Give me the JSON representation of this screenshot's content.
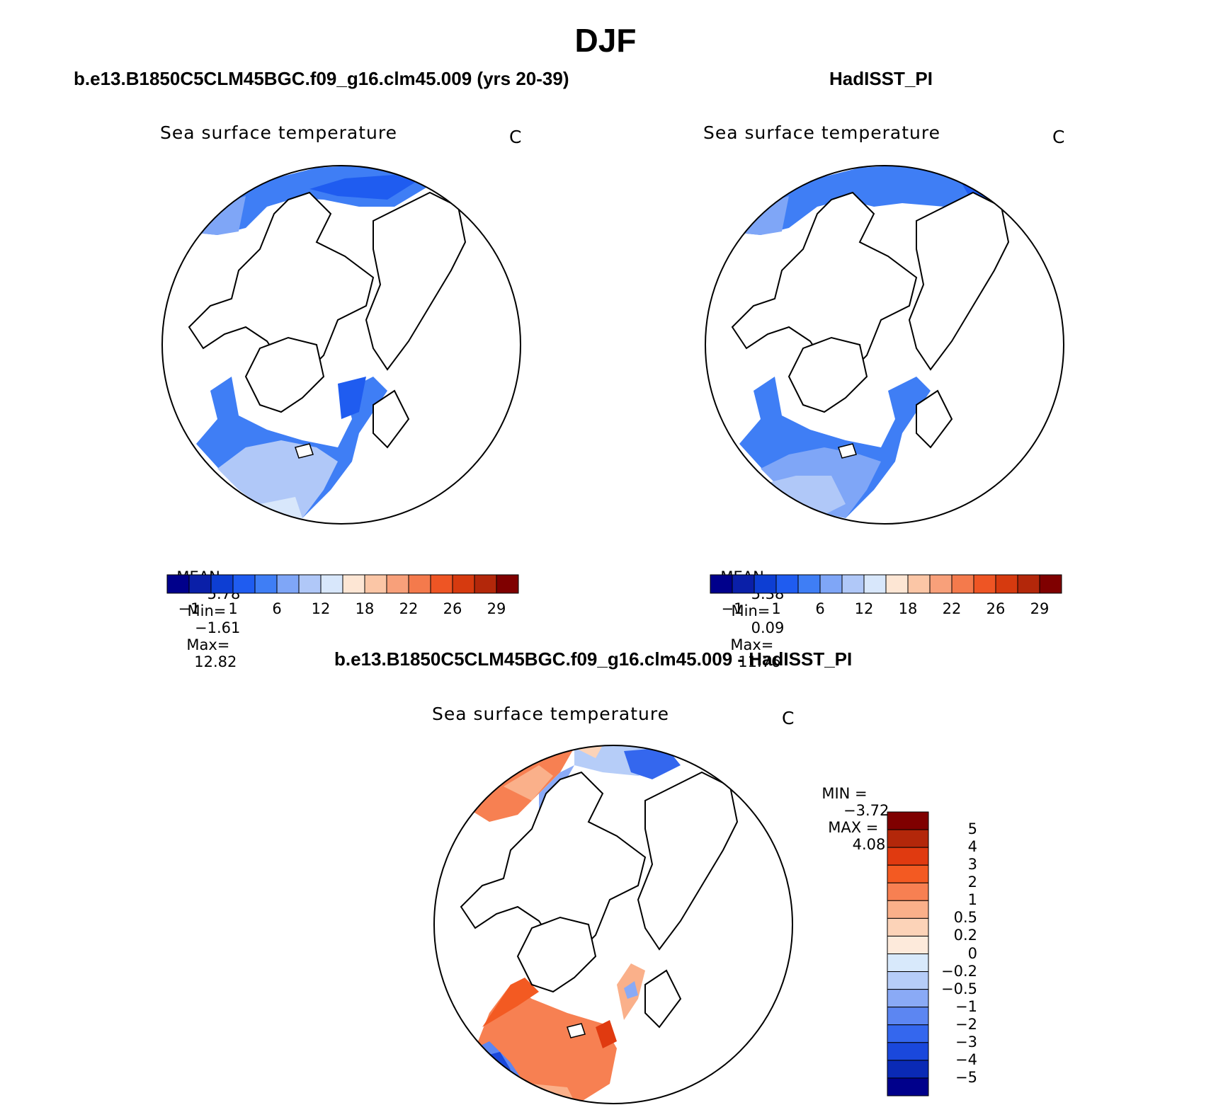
{
  "figure": {
    "title": "DJF"
  },
  "panels": [
    {
      "title": "b.e13.B1850C5CLM45BGC.f09_g16.clm45.009 (yrs 20-39)",
      "variable": "Sea surface temperature",
      "units": "C",
      "stats": {
        "mean_label": "MEAN=",
        "mean": "5.78",
        "min_label": "Min=",
        "min": "−1.61",
        "max_label": "Max=",
        "max": "12.82"
      },
      "colorbar": {
        "colors": [
          "#00008b",
          "#0a1fa8",
          "#0d3ed3",
          "#1f5cf0",
          "#3f7ef5",
          "#7fa6f7",
          "#b0c8f8",
          "#d8e7fb",
          "#fde6d4",
          "#fbc6a6",
          "#f8a07a",
          "#f47a4c",
          "#ee5524",
          "#d63a0f",
          "#b3270a",
          "#7f0000"
        ],
        "ticks": [
          "−1",
          "1",
          "6",
          "12",
          "18",
          "22",
          "26",
          "29"
        ]
      }
    },
    {
      "title": "HadISST_PI",
      "variable": "Sea surface temperature",
      "units": "C",
      "stats": {
        "mean_label": "MEAN=",
        "mean": "5.38",
        "min_label": "Min=",
        "min": "0.09",
        "max_label": "Max=",
        "max": "11.76"
      },
      "colorbar": {
        "colors": [
          "#00008b",
          "#0a1fa8",
          "#0d3ed3",
          "#1f5cf0",
          "#3f7ef5",
          "#7fa6f7",
          "#b0c8f8",
          "#d8e7fb",
          "#fde6d4",
          "#fbc6a6",
          "#f8a07a",
          "#f47a4c",
          "#ee5524",
          "#d63a0f",
          "#b3270a",
          "#7f0000"
        ],
        "ticks": [
          "−1",
          "1",
          "6",
          "12",
          "18",
          "22",
          "26",
          "29"
        ]
      }
    },
    {
      "title": "b.e13.B1850C5CLM45BGC.f09_g16.clm45.009 - HadISST_PI",
      "variable": "Sea surface temperature",
      "units": "C",
      "stats": {
        "min_label": "MIN =",
        "min": "−3.72",
        "max_label": "MAX =",
        "max": "4.08"
      },
      "colorbar": {
        "colors": [
          "#7f0000",
          "#b3270a",
          "#e03a10",
          "#f35a22",
          "#f78052",
          "#fab08a",
          "#fcd3b8",
          "#fdeadb",
          "#d8e9fb",
          "#b6cdf8",
          "#8aaaf6",
          "#5c86f2",
          "#3467ee",
          "#1a48dc",
          "#0a2ab5",
          "#00008b"
        ],
        "ticks": [
          "5",
          "4",
          "3",
          "2",
          "1",
          "0.5",
          "0.2",
          "0",
          "−0.2",
          "−0.5",
          "−1",
          "−2",
          "−3",
          "−4",
          "−5"
        ]
      }
    }
  ]
}
